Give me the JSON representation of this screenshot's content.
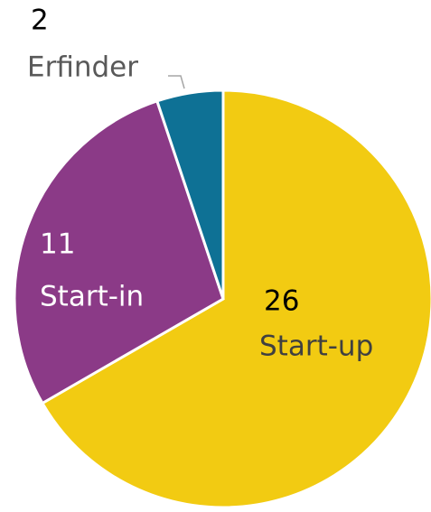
{
  "chart_data": {
    "type": "pie",
    "categories": [
      "Start-up",
      "Start-in",
      "Erfinder"
    ],
    "values": [
      26,
      11,
      2
    ],
    "colors": [
      "#F2CB12",
      "#8B3A87",
      "#0E7195"
    ]
  }
}
